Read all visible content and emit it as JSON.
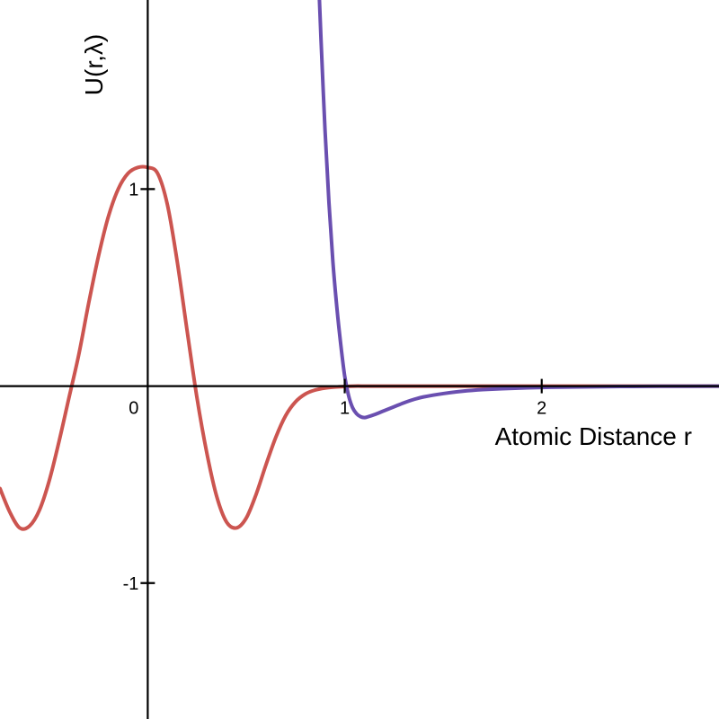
{
  "chart_data": {
    "type": "line",
    "title": "",
    "xlabel": "Atomic Distance r",
    "ylabel": "U(r,λ)",
    "xlim": [
      -0.75,
      2.9
    ],
    "ylim": [
      -1.69,
      1.96
    ],
    "grid": false,
    "legend": "none",
    "x_ticks": [
      {
        "value": 0,
        "label": "0"
      },
      {
        "value": 1,
        "label": "1"
      },
      {
        "value": 2,
        "label": "2"
      }
    ],
    "y_ticks": [
      {
        "value": 1,
        "label": "1"
      },
      {
        "value": -1,
        "label": "-1"
      }
    ],
    "series": [
      {
        "color": "#cc5550",
        "x": [
          -0.75,
          -0.7,
          -0.65,
          -0.6,
          -0.55,
          -0.5,
          -0.45,
          -0.4,
          -0.35,
          -0.3,
          -0.25,
          -0.2,
          -0.15,
          -0.1,
          -0.05,
          0.0,
          0.05,
          0.1,
          0.15,
          0.2,
          0.25,
          0.3,
          0.35,
          0.4,
          0.45,
          0.5,
          0.55,
          0.6,
          0.65,
          0.7,
          0.75,
          0.8,
          0.85,
          0.9,
          0.95,
          1.0,
          1.05,
          1.1,
          1.15,
          1.2,
          1.3,
          1.4,
          1.6,
          1.8,
          2.2,
          2.6,
          2.9
        ],
        "y": [
          -0.52,
          -0.64,
          -0.72,
          -0.71,
          -0.63,
          -0.48,
          -0.28,
          -0.06,
          0.16,
          0.42,
          0.66,
          0.86,
          1.0,
          1.08,
          1.11,
          1.11,
          1.08,
          0.92,
          0.63,
          0.28,
          -0.06,
          -0.34,
          -0.56,
          -0.69,
          -0.72,
          -0.67,
          -0.55,
          -0.4,
          -0.26,
          -0.15,
          -0.08,
          -0.04,
          -0.02,
          -0.01,
          -0.005,
          -0.002,
          0.0,
          0.0,
          0.0,
          0.0,
          0.0,
          0.0,
          0.0,
          0.0,
          0.0,
          0.0,
          0.0
        ]
      },
      {
        "color": "#6a4fb0",
        "x": [
          0.87,
          0.88,
          0.9,
          0.92,
          0.94,
          0.96,
          0.98,
          1.0,
          1.02,
          1.04,
          1.06,
          1.08,
          1.1,
          1.12,
          1.15,
          1.2,
          1.25,
          1.3,
          1.35,
          1.4,
          1.5,
          1.6,
          1.7,
          1.8,
          2.0,
          2.2,
          2.4,
          2.6,
          2.9
        ],
        "y": [
          2.0,
          1.75,
          1.3,
          0.93,
          0.63,
          0.4,
          0.21,
          0.05,
          -0.05,
          -0.11,
          -0.14,
          -0.155,
          -0.16,
          -0.155,
          -0.145,
          -0.125,
          -0.105,
          -0.085,
          -0.068,
          -0.055,
          -0.038,
          -0.026,
          -0.018,
          -0.013,
          -0.007,
          -0.004,
          -0.002,
          -0.001,
          0.0
        ]
      }
    ]
  }
}
